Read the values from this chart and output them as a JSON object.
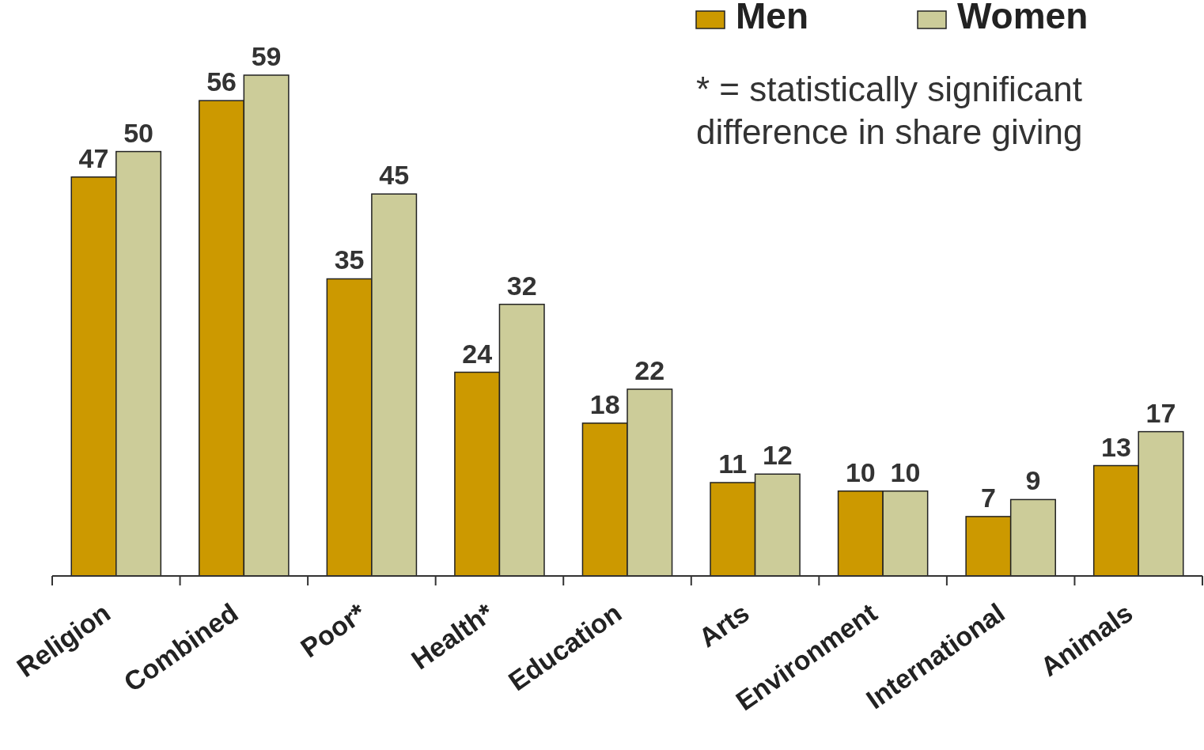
{
  "chart_data": {
    "type": "bar",
    "categories": [
      "Religion",
      "Combined",
      "Poor*",
      "Health*",
      "Education",
      "Arts",
      "Environment",
      "International",
      "Animals"
    ],
    "series": [
      {
        "name": "Men",
        "color": "#cc9900",
        "values": [
          47,
          56,
          35,
          24,
          18,
          11,
          10,
          7,
          13
        ]
      },
      {
        "name": "Women",
        "color": "#cccc99",
        "values": [
          50,
          59,
          45,
          32,
          22,
          12,
          10,
          9,
          17
        ]
      }
    ],
    "data_labels": true,
    "legend": "top right",
    "annotations": [
      "* = statistically significant difference in share giving"
    ]
  }
}
